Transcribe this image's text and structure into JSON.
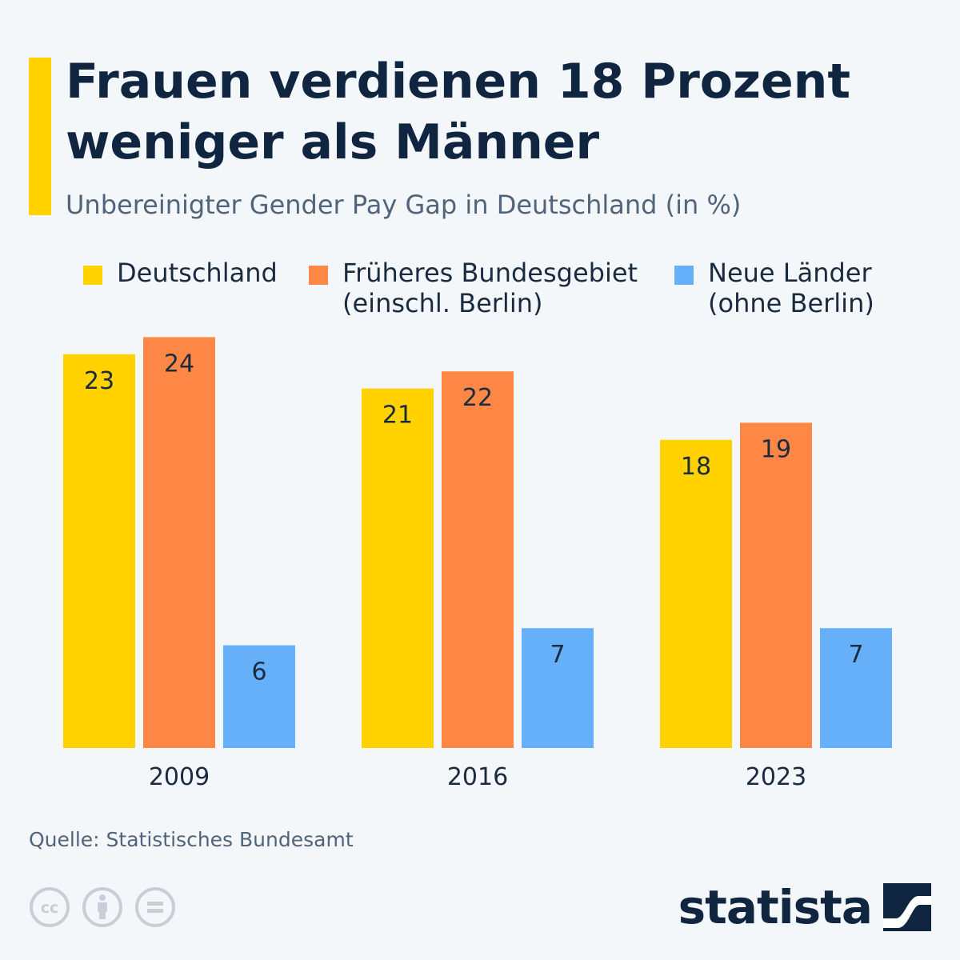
{
  "header": {
    "title_line1": "Frauen verdienen 18 Prozent",
    "title_line2": "weniger als Männer",
    "subtitle": "Unbereinigter Gender Pay Gap in Deutschland (in %)"
  },
  "legend": [
    {
      "line1": "Deutschland",
      "line2": "",
      "color": "#ffd200"
    },
    {
      "line1": "Früheres Bundesgebiet",
      "line2": "(einschl. Berlin)",
      "color": "#ff8746"
    },
    {
      "line1": "Neue Länder",
      "line2": "(ohne Berlin)",
      "color": "#66b0fa"
    }
  ],
  "chart_data": {
    "type": "bar",
    "title": "Frauen verdienen 18 Prozent weniger als Männer",
    "subtitle": "Unbereinigter Gender Pay Gap in Deutschland (in %)",
    "xlabel": "",
    "ylabel": "",
    "ylim": [
      0,
      24
    ],
    "grid": false,
    "legend_position": "top",
    "categories": [
      "2009",
      "2016",
      "2023"
    ],
    "series": [
      {
        "name": "Deutschland",
        "color": "#ffd200",
        "values": [
          23,
          21,
          18
        ]
      },
      {
        "name": "Früheres Bundesgebiet (einschl. Berlin)",
        "color": "#ff8746",
        "values": [
          24,
          22,
          19
        ]
      },
      {
        "name": "Neue Länder (ohne Berlin)",
        "color": "#66b0fa",
        "values": [
          6,
          7,
          7
        ]
      }
    ]
  },
  "footer": {
    "source": "Quelle: Statistisches Bundesamt",
    "brand": "statista",
    "license_icons": [
      "cc-icon",
      "attribution-icon",
      "no-derivatives-icon"
    ]
  }
}
